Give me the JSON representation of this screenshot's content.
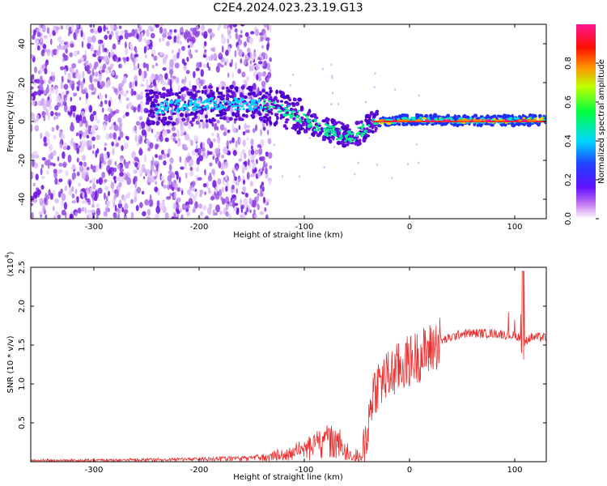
{
  "title": "C2E4.2024.023.23.19.G13",
  "chart_data": [
    {
      "type": "heatmap",
      "xlabel": "Height of straight line (km)",
      "ylabel": "Frequency (Hz)",
      "xlim": [
        -360,
        130
      ],
      "ylim": [
        -50,
        50
      ],
      "x_ticks": [
        -300,
        -200,
        -100,
        0,
        100
      ],
      "y_ticks": [
        40,
        20,
        0,
        -20,
        -40
      ],
      "colorbar": {
        "label": "Normalized spectral amplitude",
        "range": [
          0,
          1
        ],
        "ticks": [
          "0.0",
          "0.2",
          "0.4",
          "0.6",
          "0.8"
        ],
        "colors": [
          "#ffffff",
          "#8a2be2",
          "#2020ff",
          "#00d8ff",
          "#00ff60",
          "#d0ff00",
          "#ff8000",
          "#ff0000",
          "#ff1493"
        ]
      },
      "ridge": {
        "x": [
          -240,
          -200,
          -160,
          -130,
          -110,
          -90,
          -70,
          -55,
          -45,
          -35,
          -20,
          0,
          50,
          100,
          130
        ],
        "frequency": [
          7,
          9,
          9,
          8,
          4,
          -2,
          -6,
          -8,
          -5,
          0,
          0,
          1,
          0.5,
          0.5,
          1
        ]
      },
      "grid": false
    },
    {
      "type": "line",
      "xlabel": "Height of straight line (km)",
      "ylabel": "SNR (10 * v/v)",
      "y_multiplier": "(x10",
      "y_multiplier_exp": "4",
      "y_multiplier_close": ")",
      "xlim": [
        -360,
        130
      ],
      "ylim": [
        0,
        2.5
      ],
      "x_ticks": [
        -300,
        -200,
        -100,
        0,
        100
      ],
      "y_ticks": [
        "0.5",
        "1.0",
        "1.5",
        "2.0",
        "2.5"
      ],
      "series_color": "#e83030",
      "envelope": {
        "x": [
          -360,
          -300,
          -200,
          -150,
          -120,
          -100,
          -80,
          -65,
          -55,
          -45,
          -40,
          -35,
          -30,
          -25,
          -15,
          0,
          15,
          30,
          50,
          80,
          100,
          105,
          108,
          110,
          115,
          130
        ],
        "y": [
          0.02,
          0.02,
          0.04,
          0.06,
          0.1,
          0.2,
          0.35,
          0.3,
          0.1,
          0.05,
          0.4,
          0.9,
          1.0,
          1.05,
          1.15,
          1.3,
          1.4,
          1.55,
          1.65,
          1.65,
          1.62,
          1.6,
          1.3,
          1.55,
          1.6,
          1.6
        ]
      },
      "grid": false
    }
  ]
}
